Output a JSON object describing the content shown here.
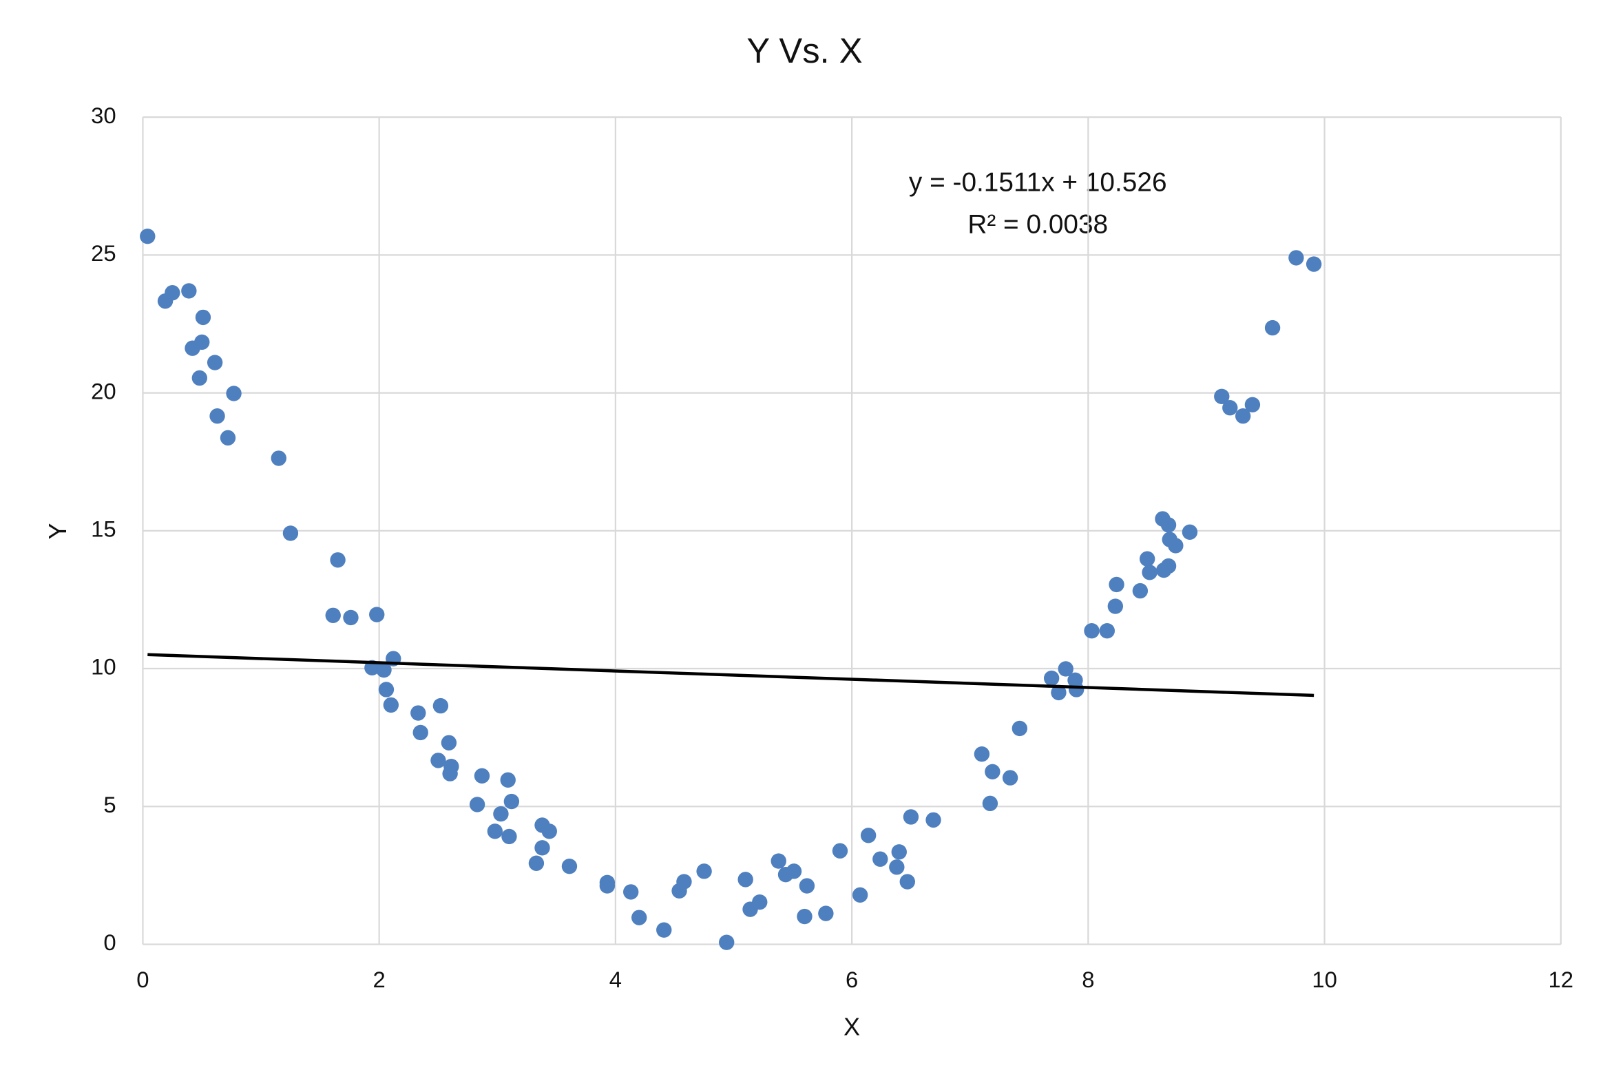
{
  "chart_data": {
    "type": "scatter",
    "title": "Y Vs. X",
    "x_label": "X",
    "y_label": "Y",
    "trendline_label": [
      "y = -0.1511x + 10.526",
      "R² = 0.0038"
    ],
    "color": "#4e7fbf",
    "trendline_color": "#000000",
    "grid": true,
    "xlim": [
      0,
      12
    ],
    "xticks": [
      0,
      2,
      4,
      6,
      8,
      10,
      12
    ],
    "ylim": [
      0,
      30
    ],
    "yticks": [
      0,
      5,
      10,
      15,
      20,
      25,
      30
    ],
    "x": [
      0.04,
      0.19,
      0.25,
      0.39,
      0.51,
      0.42,
      0.5,
      0.61,
      0.48,
      0.77,
      0.63,
      0.72,
      1.15,
      1.25,
      1.65,
      1.61,
      1.76,
      1.98,
      2.12,
      1.94,
      2.04,
      2.06,
      2.1,
      2.33,
      2.52,
      2.35,
      2.59,
      2.5,
      2.61,
      2.6,
      2.87,
      3.09,
      2.83,
      3.12,
      3.03,
      2.98,
      3.1,
      3.38,
      3.44,
      3.38,
      3.33,
      3.61,
      3.93,
      3.93,
      4.13,
      4.2,
      4.41,
      4.54,
      4.58,
      4.75,
      4.94,
      5.1,
      5.14,
      5.22,
      5.38,
      5.44,
      5.51,
      5.62,
      5.6,
      5.78,
      5.9,
      6.07,
      6.14,
      6.24,
      6.4,
      6.38,
      6.47,
      6.5,
      6.69,
      7.1,
      7.19,
      7.17,
      7.34,
      7.42,
      7.69,
      7.75,
      7.81,
      7.89,
      7.9,
      8.03,
      8.16,
      8.23,
      8.24,
      8.44,
      8.5,
      8.52,
      8.63,
      8.68,
      8.69,
      8.74,
      8.64,
      8.68,
      8.86,
      9.13,
      9.2,
      9.31,
      9.39,
      9.56,
      9.76,
      9.91
    ],
    "y": [
      25.68,
      23.33,
      23.63,
      23.7,
      22.74,
      21.62,
      21.84,
      21.1,
      20.54,
      19.98,
      19.16,
      18.37,
      17.63,
      14.91,
      13.94,
      11.93,
      11.85,
      11.96,
      10.36,
      10.03,
      9.95,
      9.24,
      8.68,
      8.39,
      8.65,
      7.68,
      7.31,
      6.67,
      6.45,
      6.19,
      6.11,
      5.96,
      5.07,
      5.18,
      4.73,
      4.1,
      3.91,
      4.32,
      4.1,
      3.5,
      2.94,
      2.83,
      2.24,
      2.12,
      1.9,
      0.97,
      0.52,
      1.94,
      2.27,
      2.65,
      0.07,
      2.35,
      1.27,
      1.53,
      3.02,
      2.53,
      2.65,
      2.12,
      1.01,
      1.12,
      3.39,
      1.79,
      3.95,
      3.09,
      3.35,
      2.8,
      2.27,
      4.62,
      4.51,
      6.9,
      6.26,
      5.11,
      6.04,
      7.83,
      9.65,
      9.13,
      9.99,
      9.58,
      9.24,
      11.37,
      11.37,
      12.26,
      13.05,
      12.82,
      13.98,
      13.49,
      15.43,
      15.21,
      14.68,
      14.46,
      13.57,
      13.72,
      14.95,
      19.87,
      19.46,
      19.16,
      19.57,
      22.36,
      24.9,
      24.67
    ]
  }
}
